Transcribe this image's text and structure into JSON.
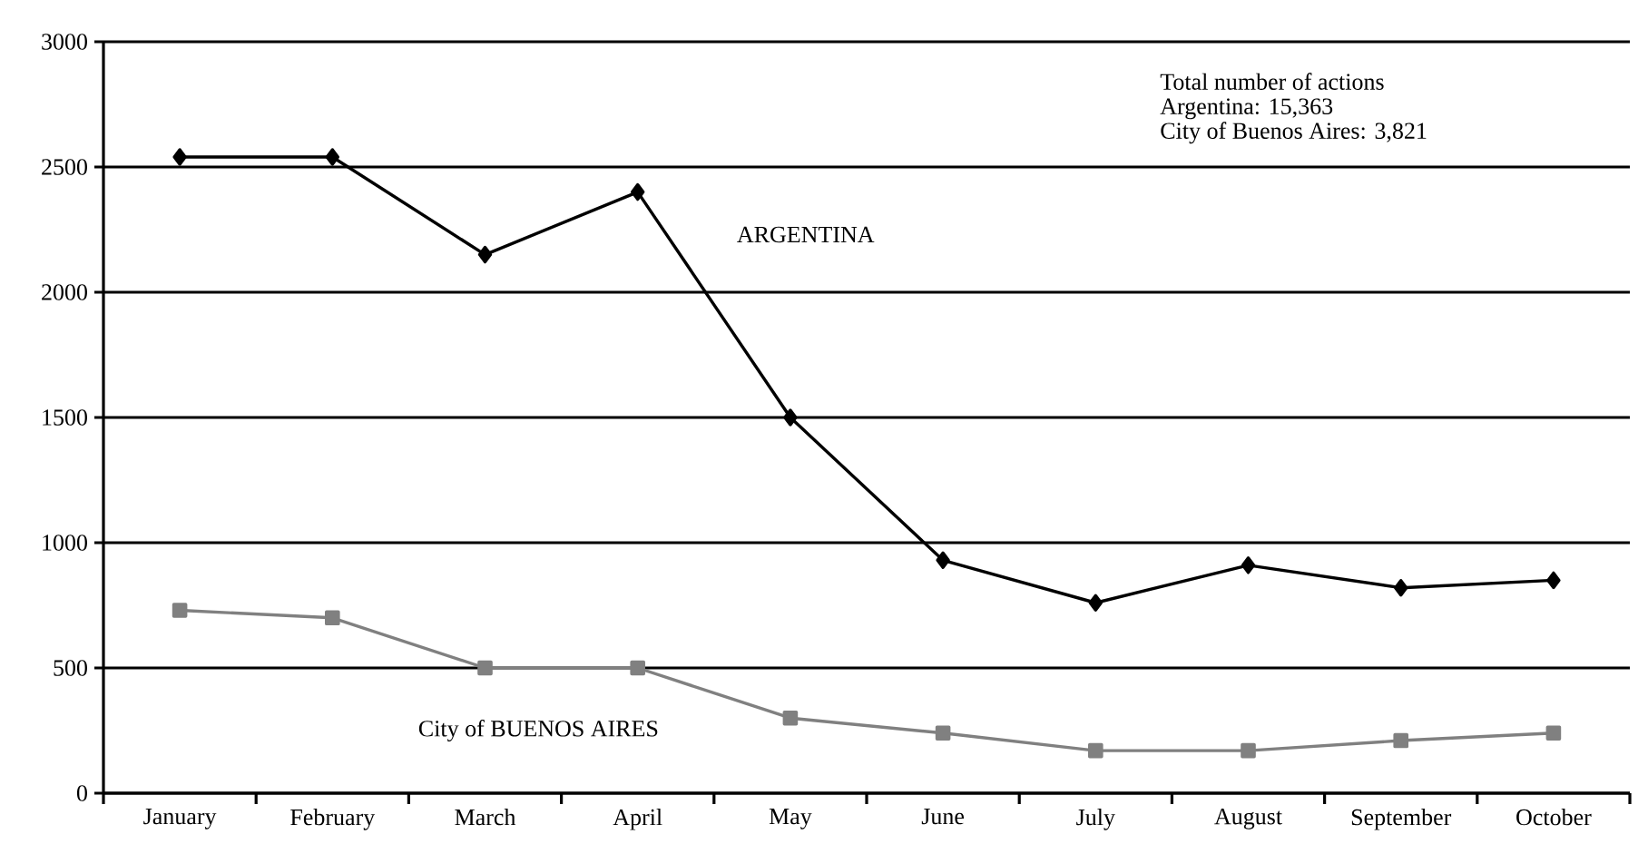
{
  "chart_data": {
    "type": "line",
    "categories": [
      "January",
      "February",
      "March",
      "April",
      "May",
      "June",
      "July",
      "August",
      "September",
      "October"
    ],
    "series": [
      {
        "name": "ARGENTINA",
        "color": "#000000",
        "marker": "diamond",
        "values": [
          2540,
          2540,
          2150,
          2400,
          1500,
          930,
          760,
          910,
          820,
          850
        ]
      },
      {
        "name": "City of BUENOS AIRES",
        "color": "#808080",
        "marker": "square",
        "values": [
          730,
          700,
          500,
          500,
          300,
          240,
          170,
          170,
          210,
          240
        ]
      }
    ],
    "ylim": [
      0,
      3000
    ],
    "yticks": [
      0,
      500,
      1000,
      1500,
      2000,
      2500,
      3000
    ],
    "grid": "y",
    "legend": false,
    "line_style": "solid",
    "annotations": [
      "Total number of actions",
      "Argentina: 15,363",
      "City of Buenos Aires: 3,821"
    ]
  }
}
